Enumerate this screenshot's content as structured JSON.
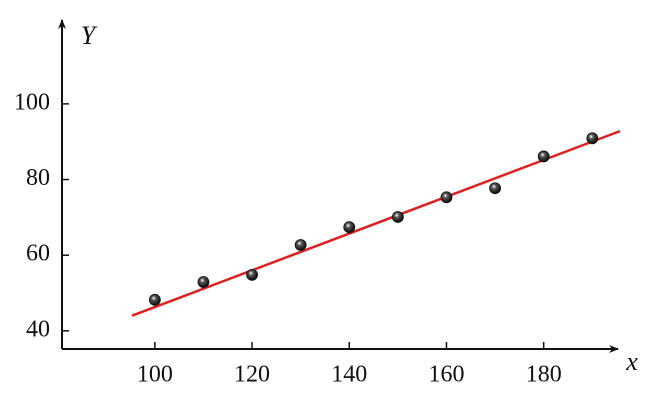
{
  "chart_data": {
    "type": "scatter",
    "x_label": "x",
    "y_label": "Y",
    "xlim": [
      80.9,
      195.7
    ],
    "ylim": [
      35.2,
      122.7
    ],
    "xticks": [
      100,
      120,
      140,
      160,
      180
    ],
    "yticks": [
      40,
      60,
      80,
      100
    ],
    "series": [
      {
        "type": "scatter",
        "color": "#111111",
        "x": [
          100,
          110,
          120,
          130,
          140,
          150,
          160,
          170,
          180,
          190
        ],
        "values": [
          48.2,
          52.9,
          54.8,
          62.7,
          67.4,
          70.1,
          75.3,
          77.7,
          86.1,
          90.9
        ]
      },
      {
        "type": "line",
        "color": "#e02020",
        "x": [
          95.3,
          195.7
        ],
        "values": [
          44.0,
          92.8
        ]
      }
    ]
  }
}
